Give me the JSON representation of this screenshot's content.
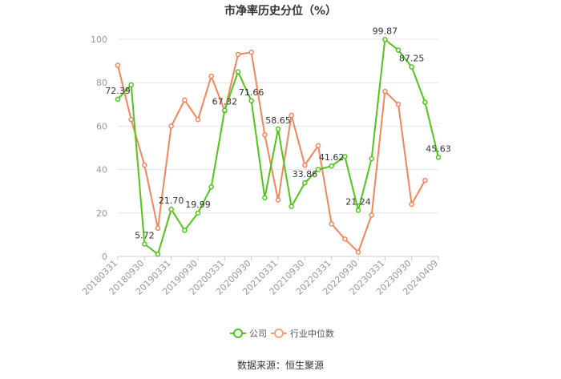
{
  "chart_data": {
    "type": "line",
    "title": "市净率历史分位（%）",
    "source": "数据来源：恒生聚源",
    "ylim": [
      0,
      100
    ],
    "yticks": [
      "0",
      "20",
      "40",
      "60",
      "80",
      "100"
    ],
    "grid": true,
    "legend_position": "bottom",
    "x": [
      "20180331",
      "20180630",
      "20180930",
      "20181231",
      "20190331",
      "20190630",
      "20190930",
      "20191231",
      "20200331",
      "20200630",
      "20200930",
      "20201231",
      "20210331",
      "20210630",
      "20210930",
      "20211231",
      "20220331",
      "20220630",
      "20220930",
      "20221231",
      "20230331",
      "20230630",
      "20230930",
      "20231231",
      "20240409"
    ],
    "x_tick_labels": [
      "20180331",
      "20180930",
      "20190331",
      "20190930",
      "20200331",
      "20200930",
      "20210331",
      "20210930",
      "20220331",
      "20220930",
      "20230331",
      "20230930",
      "20240409"
    ],
    "series": [
      {
        "name": "公司",
        "color": "#52c41a",
        "values": [
          72.39,
          79,
          5.72,
          1,
          21.7,
          12,
          19.99,
          32,
          67.32,
          85,
          71.66,
          27,
          58.65,
          23,
          33.86,
          40,
          41.62,
          46,
          21.24,
          45,
          99.87,
          95,
          87.25,
          71,
          45.63
        ],
        "labels": {
          "0": "72.39",
          "2": "5.72",
          "4": "21.70",
          "6": "19.99",
          "8": "67.32",
          "10": "71.66",
          "12": "58.65",
          "14": "33.86",
          "16": "41.62",
          "18": "21.24",
          "20": "99.87",
          "22": "87.25",
          "24": "45.63"
        }
      },
      {
        "name": "行业中位数",
        "color": "#f5845b",
        "values": [
          88,
          63,
          42,
          13,
          60,
          72,
          63,
          83,
          67,
          93,
          94,
          56,
          26,
          65,
          42,
          51,
          15,
          8,
          2,
          19,
          76,
          70,
          24,
          35,
          null
        ]
      }
    ]
  }
}
